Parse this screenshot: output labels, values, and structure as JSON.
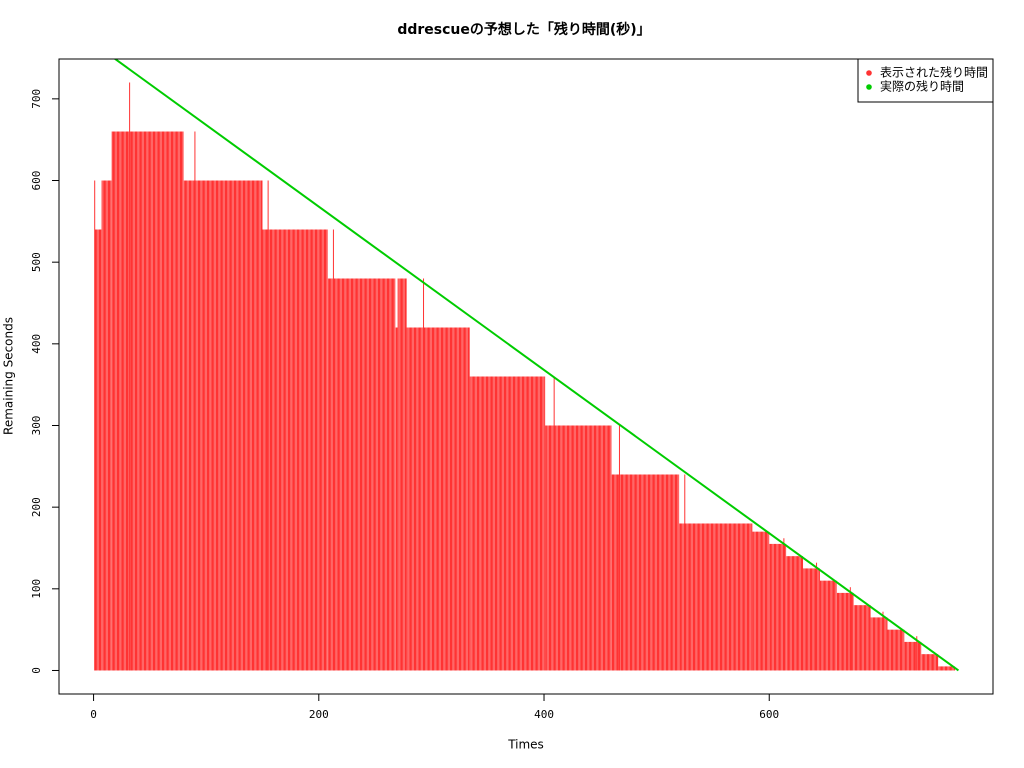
{
  "chart_data": {
    "type": "histogram",
    "title": "ddrescueの予想した「残り時間(秒)」",
    "xlabel": "Times",
    "ylabel": "Remaining Seconds",
    "xlim": [
      -30.7,
      798.7
    ],
    "ylim": [
      -28.8,
      748.8
    ],
    "xticks": [
      0,
      200,
      400,
      600
    ],
    "yticks": [
      0,
      100,
      200,
      300,
      400,
      500,
      600,
      700
    ],
    "legend_position": "top-right",
    "series": [
      {
        "name": "表示された残り時間",
        "color": "#ff3333",
        "bins": [
          1,
          7,
          16,
          80,
          150,
          208,
          268,
          270,
          278,
          334,
          401,
          460,
          520,
          585,
          600,
          615,
          630,
          645,
          660,
          675,
          690,
          705,
          720,
          735,
          750,
          765
        ],
        "values": [
          540,
          600,
          660,
          600,
          540,
          480,
          420,
          480,
          420,
          360,
          300,
          240,
          180,
          170,
          155,
          140,
          125,
          110,
          95,
          80,
          65,
          50,
          35,
          20,
          5
        ],
        "spikes": {
          "x": [
            1,
            32,
            90,
            155,
            213,
            293,
            409,
            467,
            525,
            613,
            642,
            672,
            701,
            731
          ],
          "values": [
            600,
            720,
            660,
            600,
            540,
            480,
            360,
            300,
            240,
            162,
            132,
            102,
            72,
            42
          ]
        }
      },
      {
        "name": "実際の残り時間",
        "color": "#00cc00",
        "x": [
          0,
          768
        ],
        "values": [
          768,
          0
        ]
      }
    ]
  }
}
